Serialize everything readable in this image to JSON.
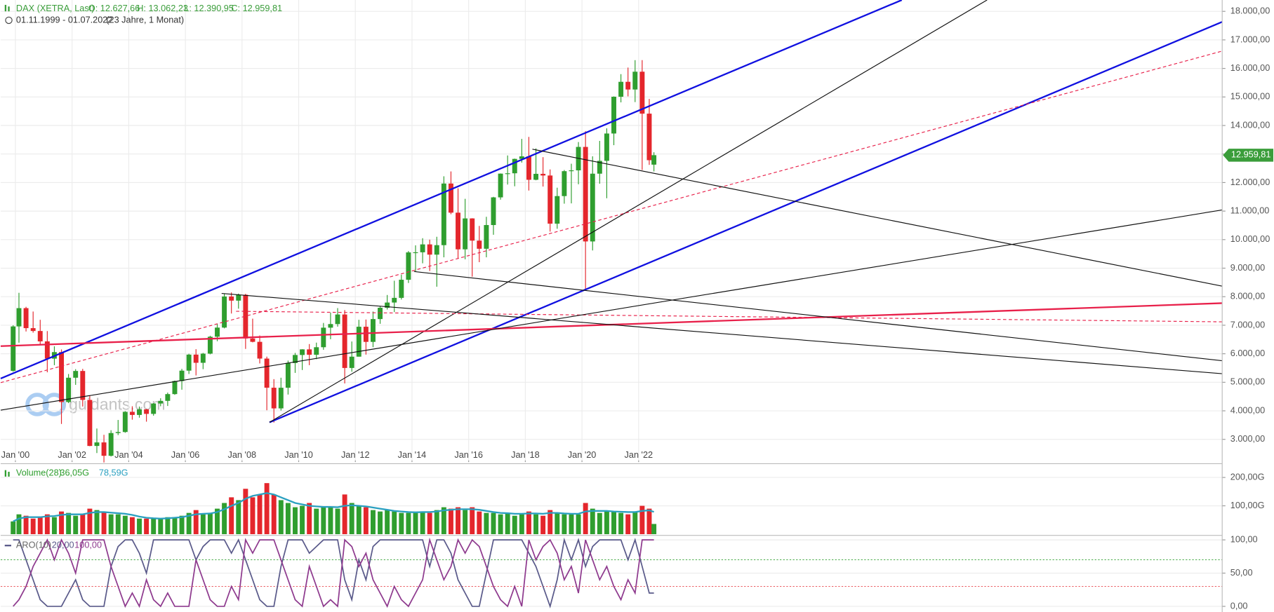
{
  "chart_data": [
    {
      "type": "candlestick",
      "title": "DAX (XETRA, Last)",
      "ohlc": [
        "O: 12.627,66",
        "H: 13.062,23",
        "L: 12.390,95",
        "C: 12.959,81"
      ],
      "range": "01.11.1999 - 01.07.2022",
      "duration": "(23 Jahre, 1 Monat)",
      "watermark": "guidants.com",
      "up_color": "#2f9e2f",
      "down_color": "#e4262c",
      "grid": true,
      "grid_color": "#ececec",
      "xlim": [
        1999.48,
        2042.6
      ],
      "xticks": [
        {
          "value": 2000,
          "label": "Jan '00"
        },
        {
          "value": 2002,
          "label": "Jan '02"
        },
        {
          "value": 2004,
          "label": "Jan '04"
        },
        {
          "value": 2006,
          "label": "Jan '06"
        },
        {
          "value": 2008,
          "label": "Jan '08"
        },
        {
          "value": 2010,
          "label": "Jan '10"
        },
        {
          "value": 2012,
          "label": "Jan '12"
        },
        {
          "value": 2014,
          "label": "Jan '14"
        },
        {
          "value": 2016,
          "label": "Jan '16"
        },
        {
          "value": 2018,
          "label": "Jan '18"
        },
        {
          "value": 2020,
          "label": "Jan '20"
        },
        {
          "value": 2022,
          "label": "Jan '22"
        }
      ],
      "ylim": [
        2205,
        18398
      ],
      "yticks": [
        {
          "value": 3000,
          "label": "3.000,00"
        },
        {
          "value": 4000,
          "label": "4.000,00"
        },
        {
          "value": 5000,
          "label": "5.000,00"
        },
        {
          "value": 6000,
          "label": "6.000,00"
        },
        {
          "value": 7000,
          "label": "7.000,00"
        },
        {
          "value": 8000,
          "label": "8.000,00"
        },
        {
          "value": 9000,
          "label": "9.000,00"
        },
        {
          "value": 10000,
          "label": "10.000,00"
        },
        {
          "value": 11000,
          "label": "11.000,00"
        },
        {
          "value": 12000,
          "label": "12.000,00"
        },
        {
          "value": 13000,
          "label": "13.000,00"
        },
        {
          "value": 14000,
          "label": "14.000,00"
        },
        {
          "value": 15000,
          "label": "15.000,00"
        },
        {
          "value": 16000,
          "label": "16.000,00"
        },
        {
          "value": 17000,
          "label": "17.000,00"
        },
        {
          "value": 18000,
          "label": "18.000,00"
        }
      ],
      "x": [
        1999.92,
        2000.125,
        2000.375,
        2000.625,
        2000.875,
        2001.125,
        2001.375,
        2001.625,
        2001.875,
        2002.125,
        2002.375,
        2002.625,
        2002.875,
        2003.125,
        2003.375,
        2003.625,
        2003.875,
        2004.125,
        2004.375,
        2004.625,
        2004.875,
        2005.125,
        2005.375,
        2005.625,
        2005.875,
        2006.125,
        2006.375,
        2006.625,
        2006.875,
        2007.125,
        2007.375,
        2007.625,
        2007.875,
        2008.125,
        2008.375,
        2008.625,
        2008.875,
        2009.125,
        2009.375,
        2009.625,
        2009.875,
        2010.125,
        2010.375,
        2010.625,
        2010.875,
        2011.125,
        2011.375,
        2011.625,
        2011.875,
        2012.125,
        2012.375,
        2012.625,
        2012.875,
        2013.125,
        2013.375,
        2013.625,
        2013.875,
        2014.125,
        2014.375,
        2014.625,
        2014.875,
        2015.125,
        2015.375,
        2015.625,
        2015.875,
        2016.125,
        2016.375,
        2016.625,
        2016.875,
        2017.125,
        2017.375,
        2017.625,
        2017.875,
        2018.125,
        2018.375,
        2018.625,
        2018.875,
        2019.125,
        2019.375,
        2019.625,
        2019.875,
        2020.125,
        2020.375,
        2020.625,
        2020.875,
        2021.125,
        2021.375,
        2021.625,
        2021.875,
        2022.125,
        2022.375,
        2022.54
      ],
      "open": [
        5400,
        6958,
        7599,
        6898,
        6798,
        6434,
        5829,
        6058,
        4308,
        5160,
        5397,
        4382,
        2769,
        2893,
        2424,
        3221,
        3257,
        3965,
        3856,
        4052,
        3893,
        4256,
        4349,
        4586,
        5044,
        5408,
        5970,
        5683,
        6004,
        6597,
        6917,
        8007,
        7862,
        8067,
        6535,
        6418,
        5831,
        4810,
        4085,
        4809,
        5675,
        5957,
        6154,
        5966,
        6229,
        6914,
        7041,
        7376,
        5502,
        5898,
        6947,
        6416,
        7216,
        7612,
        7795,
        7959,
        8594,
        9552,
        9556,
        9833,
        9474,
        9806,
        11966,
        10945,
        9660,
        10743,
        9965,
        9680,
        10511,
        11481,
        12313,
        12325,
        12829,
        12918,
        12097,
        12306,
        12247,
        10559,
        11526,
        12399,
        12428,
        13249,
        9936,
        12311,
        12761,
        13719,
        15008,
        15531,
        15261,
        15885,
        14415,
        12627.66
      ],
      "high": [
        7000,
        8136,
        7645,
        7480,
        7190,
        6795,
        6260,
        6150,
        5290,
        5460,
        5470,
        4530,
        3380,
        3160,
        3320,
        3680,
        3990,
        4160,
        4150,
        4070,
        4270,
        4440,
        4640,
        5060,
        5470,
        6000,
        6160,
        6030,
        6630,
        7040,
        8100,
        8150,
        8110,
        8100,
        7230,
        6640,
        5900,
        5110,
        5160,
        5760,
        6030,
        6160,
        6340,
        6390,
        7080,
        7440,
        7600,
        7530,
        6430,
        7190,
        7200,
        7480,
        7670,
        8060,
        8560,
        8770,
        9600,
        9800,
        10050,
        10000,
        10100,
        12220,
        12390,
        11800,
        11430,
        10750,
        10480,
        10800,
        11500,
        12320,
        12950,
        12840,
        13530,
        13600,
        13200,
        12890,
        12460,
        11820,
        12440,
        12660,
        13420,
        13800,
        12920,
        13460,
        13900,
        15020,
        15800,
        16030,
        16290,
        16290,
        14930,
        13062.23
      ],
      "low": [
        5370,
        6388,
        6780,
        6740,
        6300,
        5350,
        5600,
        3540,
        4270,
        4910,
        4150,
        2760,
        2520,
        2190,
        2400,
        3150,
        3230,
        3690,
        3760,
        3620,
        3830,
        4160,
        4170,
        4560,
        4740,
        5290,
        5240,
        5460,
        5980,
        6440,
        6890,
        7410,
        7580,
        6170,
        6400,
        5660,
        4020,
        3590,
        4010,
        4570,
        5330,
        5430,
        5600,
        5810,
        6140,
        6510,
        6950,
        4960,
        5370,
        5900,
        5970,
        6230,
        7050,
        7550,
        7460,
        7900,
        8480,
        8870,
        9170,
        8900,
        8350,
        9380,
        10890,
        9340,
        9310,
        8700,
        9210,
        9380,
        10170,
        11400,
        11930,
        11870,
        12700,
        11720,
        12080,
        11860,
        10280,
        10380,
        11260,
        11270,
        11940,
        8260,
        9620,
        11960,
        11450,
        13310,
        14810,
        15020,
        14820,
        12440,
        12620,
        12390.95
      ],
      "close": [
        6958,
        7599,
        6898,
        6798,
        6434,
        5829,
        6058,
        4308,
        5160,
        5397,
        4382,
        2769,
        2893,
        2424,
        3221,
        3257,
        3965,
        3856,
        4052,
        3893,
        4256,
        4349,
        4586,
        5044,
        5408,
        5970,
        5683,
        6004,
        6597,
        6917,
        8007,
        7862,
        8067,
        6535,
        6418,
        5831,
        4810,
        4085,
        4809,
        5675,
        5957,
        6154,
        5966,
        6229,
        6914,
        7041,
        7376,
        5502,
        5898,
        6947,
        6416,
        7216,
        7612,
        7795,
        7959,
        8594,
        9552,
        9556,
        9833,
        9474,
        9806,
        11966,
        10945,
        9660,
        10743,
        9965,
        9680,
        10511,
        11481,
        12313,
        12325,
        12829,
        12918,
        12097,
        12306,
        12247,
        10559,
        11526,
        12399,
        12428,
        13249,
        9936,
        12311,
        12761,
        13719,
        15008,
        15531,
        15261,
        15885,
        14415,
        12784,
        12959.81
      ],
      "last_price": 12959.81,
      "last_price_label": "12.959,81",
      "last_price_color": "#3a9d3a",
      "trendlines": [
        {
          "x": [
            1999.48,
            2031.29
          ],
          "y": [
            5131,
            18398
          ],
          "color": "#1010e0",
          "width": 2,
          "dashed": false
        },
        {
          "x": [
            2008.97,
            2042.6
          ],
          "y": [
            3597,
            17631
          ],
          "color": "#1010e0",
          "width": 2,
          "dashed": false
        },
        {
          "x": [
            2008.97,
            2034.3
          ],
          "y": [
            3597,
            18398
          ],
          "color": "#111111",
          "width": 1,
          "dashed": false
        },
        {
          "x": [
            1999.48,
            2042.6
          ],
          "y": [
            4989,
            16608
          ],
          "color": "#e8204a",
          "width": 1,
          "dashed": true
        },
        {
          "x": [
            1999.48,
            2042.6
          ],
          "y": [
            6267,
            7773
          ],
          "color": "#e8204a",
          "width": 2,
          "dashed": false
        },
        {
          "x": [
            2007.79,
            2042.6
          ],
          "y": [
            7489,
            7119
          ],
          "color": "#e8204a",
          "width": 1,
          "dashed": true
        },
        {
          "x": [
            2007.28,
            2042.6
          ],
          "y": [
            8114,
            5301
          ],
          "color": "#111111",
          "width": 1,
          "dashed": false
        },
        {
          "x": [
            2014.07,
            2042.6
          ],
          "y": [
            8881,
            5756
          ],
          "color": "#111111",
          "width": 1,
          "dashed": false
        },
        {
          "x": [
            2018.25,
            2042.6
          ],
          "y": [
            13170,
            8369
          ],
          "color": "#111111",
          "width": 1,
          "dashed": false
        },
        {
          "x": [
            1999.48,
            2042.6
          ],
          "y": [
            4023,
            11040
          ],
          "color": "#111111",
          "width": 1,
          "dashed": false
        }
      ]
    },
    {
      "type": "bar",
      "label": "Volume(28)",
      "legend_values": [
        "36,05G",
        "78,59G"
      ],
      "legend_colors": [
        "#2f9e2f",
        "#2aa0c0"
      ],
      "up_color": "#2f9e2f",
      "down_color": "#e4262c",
      "grid": true,
      "grid_color": "#ececec",
      "ylim": [
        0,
        242.9
      ],
      "yticks": [
        {
          "value": 100,
          "label": "100,00G"
        },
        {
          "value": 200,
          "label": "200,00G"
        }
      ],
      "values": [
        45,
        70,
        65,
        55,
        60,
        70,
        60,
        80,
        75,
        65,
        70,
        90,
        85,
        80,
        70,
        70,
        65,
        60,
        55,
        55,
        55,
        55,
        60,
        60,
        65,
        75,
        85,
        70,
        75,
        90,
        110,
        130,
        120,
        160,
        130,
        140,
        180,
        140,
        120,
        110,
        95,
        100,
        110,
        90,
        95,
        95,
        90,
        140,
        110,
        100,
        95,
        85,
        80,
        85,
        80,
        75,
        75,
        75,
        80,
        75,
        85,
        95,
        90,
        95,
        85,
        95,
        80,
        75,
        75,
        70,
        75,
        65,
        70,
        80,
        70,
        65,
        85,
        75,
        70,
        70,
        70,
        110,
        90,
        75,
        80,
        80,
        75,
        70,
        80,
        100,
        90,
        36.05
      ],
      "ma": {
        "color": "#2aa0c0",
        "values": [
          45,
          55,
          60,
          60,
          60,
          63,
          64,
          68,
          70,
          70,
          70,
          75,
          78,
          78,
          76,
          74,
          72,
          68,
          62,
          58,
          56,
          55,
          56,
          58,
          60,
          65,
          70,
          72,
          73,
          78,
          88,
          100,
          110,
          125,
          135,
          140,
          145,
          140,
          130,
          120,
          110,
          105,
          100,
          98,
          96,
          96,
          95,
          100,
          102,
          100,
          98,
          94,
          90,
          86,
          82,
          80,
          78,
          77,
          78,
          78,
          80,
          84,
          86,
          88,
          88,
          88,
          86,
          82,
          78,
          75,
          74,
          72,
          72,
          73,
          73,
          72,
          75,
          75,
          73,
          72,
          72,
          80,
          82,
          82,
          82,
          80,
          79,
          78,
          78,
          82,
          84,
          78.59
        ]
      }
    },
    {
      "type": "line",
      "label": "ARO(10)",
      "grid": true,
      "grid_color": "#ececec",
      "ylim": [
        -8.5,
        104.9
      ],
      "yticks": [
        {
          "value": 0,
          "label": "0,00"
        },
        {
          "value": 50,
          "label": "50,00"
        },
        {
          "value": 100,
          "label": "100,00"
        }
      ],
      "levels": [
        {
          "value": 70,
          "color": "#2f9e2f"
        },
        {
          "value": 30,
          "color": "#e4262c"
        }
      ],
      "series": [
        {
          "color": "#5a5a8a",
          "legend_value": "20,00",
          "values": [
            100,
            100,
            70,
            40,
            10,
            0,
            0,
            0,
            20,
            40,
            10,
            0,
            0,
            0,
            60,
            90,
            100,
            100,
            80,
            50,
            100,
            100,
            100,
            100,
            100,
            100,
            70,
            90,
            100,
            100,
            100,
            80,
            100,
            70,
            40,
            10,
            0,
            0,
            60,
            100,
            100,
            100,
            80,
            90,
            100,
            100,
            100,
            40,
            10,
            70,
            40,
            90,
            100,
            100,
            100,
            100,
            100,
            100,
            100,
            60,
            100,
            100,
            80,
            40,
            20,
            0,
            0,
            50,
            100,
            100,
            100,
            100,
            100,
            80,
            60,
            30,
            0,
            40,
            100,
            70,
            100,
            60,
            90,
            100,
            100,
            100,
            100,
            70,
            100,
            60,
            20,
            20
          ]
        },
        {
          "color": "#8e3a8e",
          "legend_value": "100,00",
          "values": [
            0,
            10,
            30,
            60,
            80,
            100,
            70,
            100,
            80,
            50,
            100,
            100,
            100,
            100,
            60,
            30,
            0,
            20,
            0,
            40,
            10,
            0,
            20,
            0,
            0,
            0,
            70,
            40,
            10,
            0,
            0,
            30,
            10,
            100,
            80,
            100,
            100,
            100,
            70,
            40,
            10,
            0,
            60,
            30,
            0,
            10,
            0,
            100,
            90,
            60,
            80,
            40,
            20,
            0,
            30,
            10,
            0,
            20,
            40,
            100,
            70,
            40,
            60,
            100,
            80,
            100,
            90,
            60,
            30,
            10,
            0,
            30,
            0,
            100,
            70,
            90,
            100,
            80,
            40,
            60,
            20,
            100,
            70,
            40,
            60,
            30,
            10,
            40,
            20,
            100,
            100,
            100
          ]
        }
      ]
    }
  ]
}
